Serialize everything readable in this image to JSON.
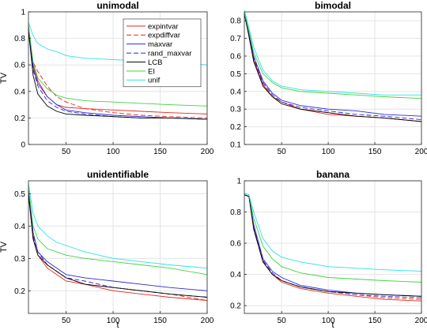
{
  "figure": {
    "width": 540,
    "height": 418
  },
  "series_styles": [
    {
      "name": "expintvar",
      "color": "#e8271b",
      "dash": ""
    },
    {
      "name": "expdiffvar",
      "color": "#e8271b",
      "dash": "6,3"
    },
    {
      "name": "maxvar",
      "color": "#2a2ad8",
      "dash": ""
    },
    {
      "name": "rand_maxvar",
      "color": "#2a2ad8",
      "dash": "6,3"
    },
    {
      "name": "LCB",
      "color": "#000000",
      "dash": ""
    },
    {
      "name": "EI",
      "color": "#3ed43e",
      "dash": ""
    },
    {
      "name": "unif",
      "color": "#2ee0ee",
      "dash": ""
    }
  ],
  "chart_data": [
    {
      "type": "line",
      "title": "unimodal",
      "xlabel": "",
      "ylabel": "TV",
      "xlim": [
        10,
        200
      ],
      "ylim": [
        0,
        1
      ],
      "xticks": [
        50,
        100,
        150,
        200
      ],
      "yticks": [
        0,
        0.2,
        0.4,
        0.6,
        0.8,
        1
      ],
      "ytick_labels": [
        "0",
        "0.2",
        "0.4",
        "0.6",
        "0.8",
        "1"
      ],
      "grid": true,
      "legend": "top-right",
      "series": [
        {
          "name": "expintvar",
          "x": [
            10,
            15,
            20,
            30,
            40,
            50,
            70,
            100,
            130,
            160,
            200
          ],
          "y": [
            0.9,
            0.6,
            0.48,
            0.36,
            0.3,
            0.28,
            0.27,
            0.26,
            0.25,
            0.24,
            0.23
          ]
        },
        {
          "name": "expdiffvar",
          "x": [
            10,
            15,
            20,
            30,
            40,
            50,
            70,
            100,
            130,
            160,
            200
          ],
          "y": [
            0.88,
            0.62,
            0.55,
            0.44,
            0.36,
            0.32,
            0.27,
            0.24,
            0.22,
            0.21,
            0.2
          ]
        },
        {
          "name": "maxvar",
          "x": [
            10,
            15,
            20,
            30,
            40,
            50,
            70,
            100,
            130,
            160,
            200
          ],
          "y": [
            0.88,
            0.58,
            0.46,
            0.36,
            0.3,
            0.26,
            0.24,
            0.22,
            0.21,
            0.2,
            0.19
          ]
        },
        {
          "name": "rand_maxvar",
          "x": [
            10,
            15,
            20,
            30,
            40,
            50,
            70,
            100,
            130,
            160,
            200
          ],
          "y": [
            0.88,
            0.56,
            0.44,
            0.33,
            0.28,
            0.25,
            0.23,
            0.21,
            0.2,
            0.2,
            0.19
          ]
        },
        {
          "name": "LCB",
          "x": [
            10,
            15,
            20,
            30,
            40,
            50,
            70,
            100,
            130,
            160,
            200
          ],
          "y": [
            0.86,
            0.52,
            0.38,
            0.29,
            0.25,
            0.23,
            0.22,
            0.21,
            0.2,
            0.2,
            0.19
          ]
        },
        {
          "name": "EI",
          "x": [
            10,
            15,
            20,
            30,
            40,
            50,
            70,
            100,
            130,
            160,
            200
          ],
          "y": [
            0.9,
            0.62,
            0.5,
            0.42,
            0.37,
            0.35,
            0.33,
            0.32,
            0.31,
            0.3,
            0.29
          ]
        },
        {
          "name": "unif",
          "x": [
            10,
            15,
            20,
            30,
            40,
            50,
            70,
            100,
            130,
            160,
            200
          ],
          "y": [
            0.92,
            0.82,
            0.76,
            0.72,
            0.7,
            0.67,
            0.65,
            0.64,
            0.63,
            0.62,
            0.6
          ]
        }
      ]
    },
    {
      "type": "line",
      "title": "bimodal",
      "xlabel": "",
      "ylabel": "",
      "xlim": [
        10,
        200
      ],
      "ylim": [
        0.1,
        0.85
      ],
      "xticks": [
        50,
        100,
        150,
        200
      ],
      "yticks": [
        0.1,
        0.2,
        0.3,
        0.4,
        0.5,
        0.6,
        0.7,
        0.8
      ],
      "ytick_labels": [
        "0.1",
        "0.2",
        "0.3",
        "0.4",
        "0.5",
        "0.6",
        "0.7",
        "0.8"
      ],
      "grid": true,
      "legend": "none",
      "series": [
        {
          "name": "expintvar",
          "x": [
            10,
            15,
            20,
            30,
            40,
            50,
            70,
            100,
            130,
            160,
            200
          ],
          "y": [
            0.84,
            0.72,
            0.58,
            0.44,
            0.37,
            0.34,
            0.3,
            0.27,
            0.26,
            0.25,
            0.23
          ]
        },
        {
          "name": "expdiffvar",
          "x": [
            10,
            15,
            20,
            30,
            40,
            50,
            70,
            100,
            130,
            160,
            200
          ],
          "y": [
            0.84,
            0.72,
            0.59,
            0.45,
            0.38,
            0.34,
            0.3,
            0.28,
            0.26,
            0.25,
            0.23
          ]
        },
        {
          "name": "maxvar",
          "x": [
            10,
            15,
            20,
            30,
            40,
            50,
            70,
            100,
            130,
            160,
            200
          ],
          "y": [
            0.84,
            0.73,
            0.6,
            0.46,
            0.39,
            0.35,
            0.32,
            0.3,
            0.29,
            0.27,
            0.26
          ]
        },
        {
          "name": "rand_maxvar",
          "x": [
            10,
            15,
            20,
            30,
            40,
            50,
            70,
            100,
            130,
            160,
            200
          ],
          "y": [
            0.84,
            0.72,
            0.59,
            0.45,
            0.38,
            0.34,
            0.31,
            0.29,
            0.27,
            0.26,
            0.24
          ]
        },
        {
          "name": "LCB",
          "x": [
            10,
            15,
            20,
            30,
            40,
            50,
            70,
            100,
            130,
            160,
            200
          ],
          "y": [
            0.84,
            0.71,
            0.57,
            0.43,
            0.37,
            0.33,
            0.3,
            0.28,
            0.26,
            0.25,
            0.23
          ]
        },
        {
          "name": "EI",
          "x": [
            10,
            15,
            20,
            30,
            40,
            50,
            70,
            100,
            130,
            160,
            200
          ],
          "y": [
            0.85,
            0.74,
            0.62,
            0.5,
            0.45,
            0.42,
            0.4,
            0.39,
            0.38,
            0.37,
            0.36
          ]
        },
        {
          "name": "unif",
          "x": [
            10,
            15,
            20,
            30,
            40,
            50,
            70,
            100,
            130,
            160,
            200
          ],
          "y": [
            0.86,
            0.76,
            0.65,
            0.52,
            0.46,
            0.43,
            0.41,
            0.4,
            0.39,
            0.38,
            0.38
          ]
        }
      ]
    },
    {
      "type": "line",
      "title": "unidentifiable",
      "xlabel": "t",
      "ylabel": "TV",
      "xlim": [
        10,
        200
      ],
      "ylim": [
        0.13,
        0.54
      ],
      "xticks": [
        50,
        100,
        150,
        200
      ],
      "yticks": [
        0.2,
        0.3,
        0.4,
        0.5
      ],
      "ytick_labels": [
        "0.2",
        "0.3",
        "0.4",
        "0.5"
      ],
      "grid": true,
      "legend": "none",
      "series": [
        {
          "name": "expintvar",
          "x": [
            10,
            15,
            20,
            30,
            40,
            50,
            70,
            100,
            130,
            160,
            200
          ],
          "y": [
            0.5,
            0.36,
            0.31,
            0.27,
            0.25,
            0.23,
            0.22,
            0.2,
            0.19,
            0.18,
            0.17
          ]
        },
        {
          "name": "expdiffvar",
          "x": [
            10,
            15,
            20,
            30,
            40,
            50,
            70,
            100,
            130,
            160,
            200
          ],
          "y": [
            0.5,
            0.37,
            0.32,
            0.28,
            0.26,
            0.24,
            0.22,
            0.21,
            0.2,
            0.19,
            0.17
          ]
        },
        {
          "name": "maxvar",
          "x": [
            10,
            15,
            20,
            30,
            40,
            50,
            70,
            100,
            130,
            160,
            200
          ],
          "y": [
            0.51,
            0.38,
            0.32,
            0.29,
            0.27,
            0.25,
            0.24,
            0.23,
            0.22,
            0.21,
            0.2
          ]
        },
        {
          "name": "rand_maxvar",
          "x": [
            10,
            15,
            20,
            30,
            40,
            50,
            70,
            100,
            130,
            160,
            200
          ],
          "y": [
            0.5,
            0.37,
            0.32,
            0.28,
            0.26,
            0.24,
            0.23,
            0.21,
            0.2,
            0.19,
            0.18
          ]
        },
        {
          "name": "LCB",
          "x": [
            10,
            15,
            20,
            30,
            40,
            50,
            70,
            100,
            130,
            160,
            200
          ],
          "y": [
            0.5,
            0.36,
            0.31,
            0.28,
            0.26,
            0.24,
            0.22,
            0.21,
            0.2,
            0.19,
            0.18
          ]
        },
        {
          "name": "EI",
          "x": [
            10,
            15,
            20,
            30,
            40,
            50,
            70,
            100,
            130,
            160,
            200
          ],
          "y": [
            0.52,
            0.4,
            0.36,
            0.33,
            0.32,
            0.31,
            0.3,
            0.29,
            0.28,
            0.27,
            0.25
          ]
        },
        {
          "name": "unif",
          "x": [
            10,
            15,
            20,
            30,
            40,
            50,
            70,
            100,
            130,
            160,
            200
          ],
          "y": [
            0.53,
            0.44,
            0.4,
            0.37,
            0.35,
            0.34,
            0.32,
            0.3,
            0.29,
            0.28,
            0.27
          ]
        }
      ]
    },
    {
      "type": "line",
      "title": "banana",
      "xlabel": "t",
      "ylabel": "",
      "xlim": [
        10,
        200
      ],
      "ylim": [
        0.15,
        1
      ],
      "xticks": [
        50,
        100,
        150,
        200
      ],
      "yticks": [
        0.2,
        0.4,
        0.6,
        0.8,
        1
      ],
      "ytick_labels": [
        "0.2",
        "0.4",
        "0.6",
        "0.8",
        "1"
      ],
      "grid": true,
      "legend": "none",
      "series": [
        {
          "name": "expintvar",
          "x": [
            10,
            15,
            20,
            30,
            40,
            50,
            70,
            100,
            130,
            160,
            200
          ],
          "y": [
            0.91,
            0.9,
            0.7,
            0.48,
            0.4,
            0.35,
            0.31,
            0.28,
            0.26,
            0.24,
            0.23
          ]
        },
        {
          "name": "expdiffvar",
          "x": [
            10,
            15,
            20,
            30,
            40,
            50,
            70,
            100,
            130,
            160,
            200
          ],
          "y": [
            0.91,
            0.9,
            0.7,
            0.49,
            0.4,
            0.36,
            0.32,
            0.29,
            0.27,
            0.25,
            0.24
          ]
        },
        {
          "name": "maxvar",
          "x": [
            10,
            15,
            20,
            30,
            40,
            50,
            70,
            100,
            130,
            160,
            200
          ],
          "y": [
            0.91,
            0.9,
            0.72,
            0.5,
            0.42,
            0.38,
            0.33,
            0.3,
            0.28,
            0.27,
            0.26
          ]
        },
        {
          "name": "rand_maxvar",
          "x": [
            10,
            15,
            20,
            30,
            40,
            50,
            70,
            100,
            130,
            160,
            200
          ],
          "y": [
            0.91,
            0.9,
            0.7,
            0.49,
            0.41,
            0.36,
            0.32,
            0.29,
            0.27,
            0.26,
            0.25
          ]
        },
        {
          "name": "LCB",
          "x": [
            10,
            15,
            20,
            30,
            40,
            50,
            70,
            100,
            130,
            160,
            200
          ],
          "y": [
            0.91,
            0.9,
            0.69,
            0.48,
            0.4,
            0.36,
            0.32,
            0.29,
            0.28,
            0.27,
            0.26
          ]
        },
        {
          "name": "EI",
          "x": [
            10,
            15,
            20,
            30,
            40,
            50,
            70,
            100,
            130,
            160,
            200
          ],
          "y": [
            0.92,
            0.91,
            0.76,
            0.58,
            0.5,
            0.45,
            0.41,
            0.38,
            0.37,
            0.36,
            0.35
          ]
        },
        {
          "name": "unif",
          "x": [
            10,
            15,
            20,
            30,
            40,
            50,
            70,
            100,
            130,
            160,
            200
          ],
          "y": [
            0.92,
            0.91,
            0.8,
            0.63,
            0.55,
            0.51,
            0.48,
            0.45,
            0.44,
            0.43,
            0.42
          ]
        }
      ]
    }
  ]
}
